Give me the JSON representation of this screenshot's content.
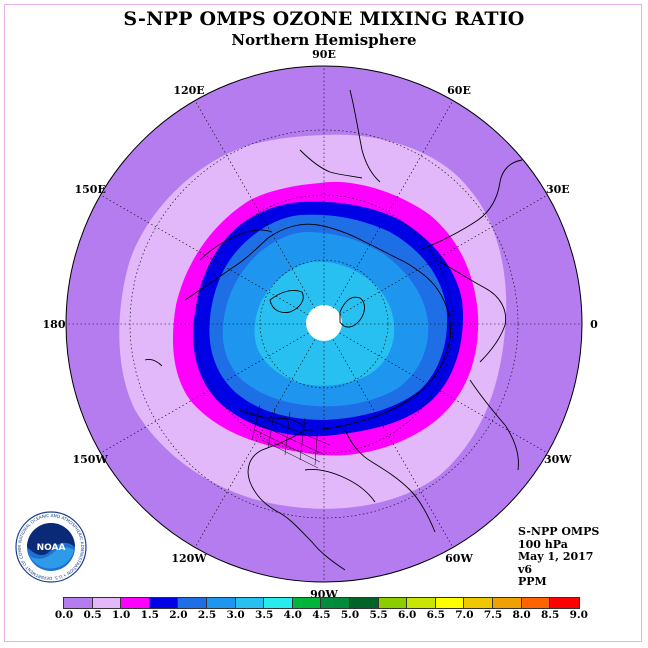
{
  "title": "S-NPP OMPS OZONE MIXING RATIO",
  "subtitle": "Northern Hemisphere",
  "longitude_labels": [
    "90E",
    "60E",
    "30E",
    "0",
    "30W",
    "60W",
    "90W",
    "120W",
    "150W",
    "180",
    "150E",
    "120E"
  ],
  "info": {
    "instrument": "S-NPP OMPS",
    "level": "100 hPa",
    "date": "May 1, 2017",
    "version": "v6",
    "units": "PPM"
  },
  "colorbar": {
    "ticks": [
      "0.0",
      "0.5",
      "1.0",
      "1.5",
      "2.0",
      "2.5",
      "3.0",
      "3.5",
      "4.0",
      "4.5",
      "5.0",
      "5.5",
      "6.0",
      "6.5",
      "7.0",
      "7.5",
      "8.0",
      "8.5",
      "9.0"
    ],
    "colors": [
      "#b57cf0",
      "#e2b8fa",
      "#ff00ff",
      "#0000e6",
      "#1e6fe6",
      "#1e96f0",
      "#28c0f0",
      "#26ecec",
      "#00b43c",
      "#008c3c",
      "#006428",
      "#8ccd00",
      "#c8e600",
      "#ffff00",
      "#f0c800",
      "#f0a000",
      "#ff6400",
      "#ff0000",
      "#96623c"
    ]
  },
  "logo": {
    "text": "NOAA",
    "ring_text": "NATIONAL OCEANIC AND ATMOSPHERIC ADMINISTRATION • U.S. DEPARTMENT OF COMMERCE"
  },
  "colors": {
    "low": "#b57cf0",
    "pale": "#e2b8fa",
    "magenta": "#ff00ff",
    "dark_blue": "#0000e6",
    "mid_blue": "#1e6fe6",
    "sky_blue": "#1e96f0",
    "light_blue": "#28c0f0",
    "pole_cap": "#ffffff"
  }
}
